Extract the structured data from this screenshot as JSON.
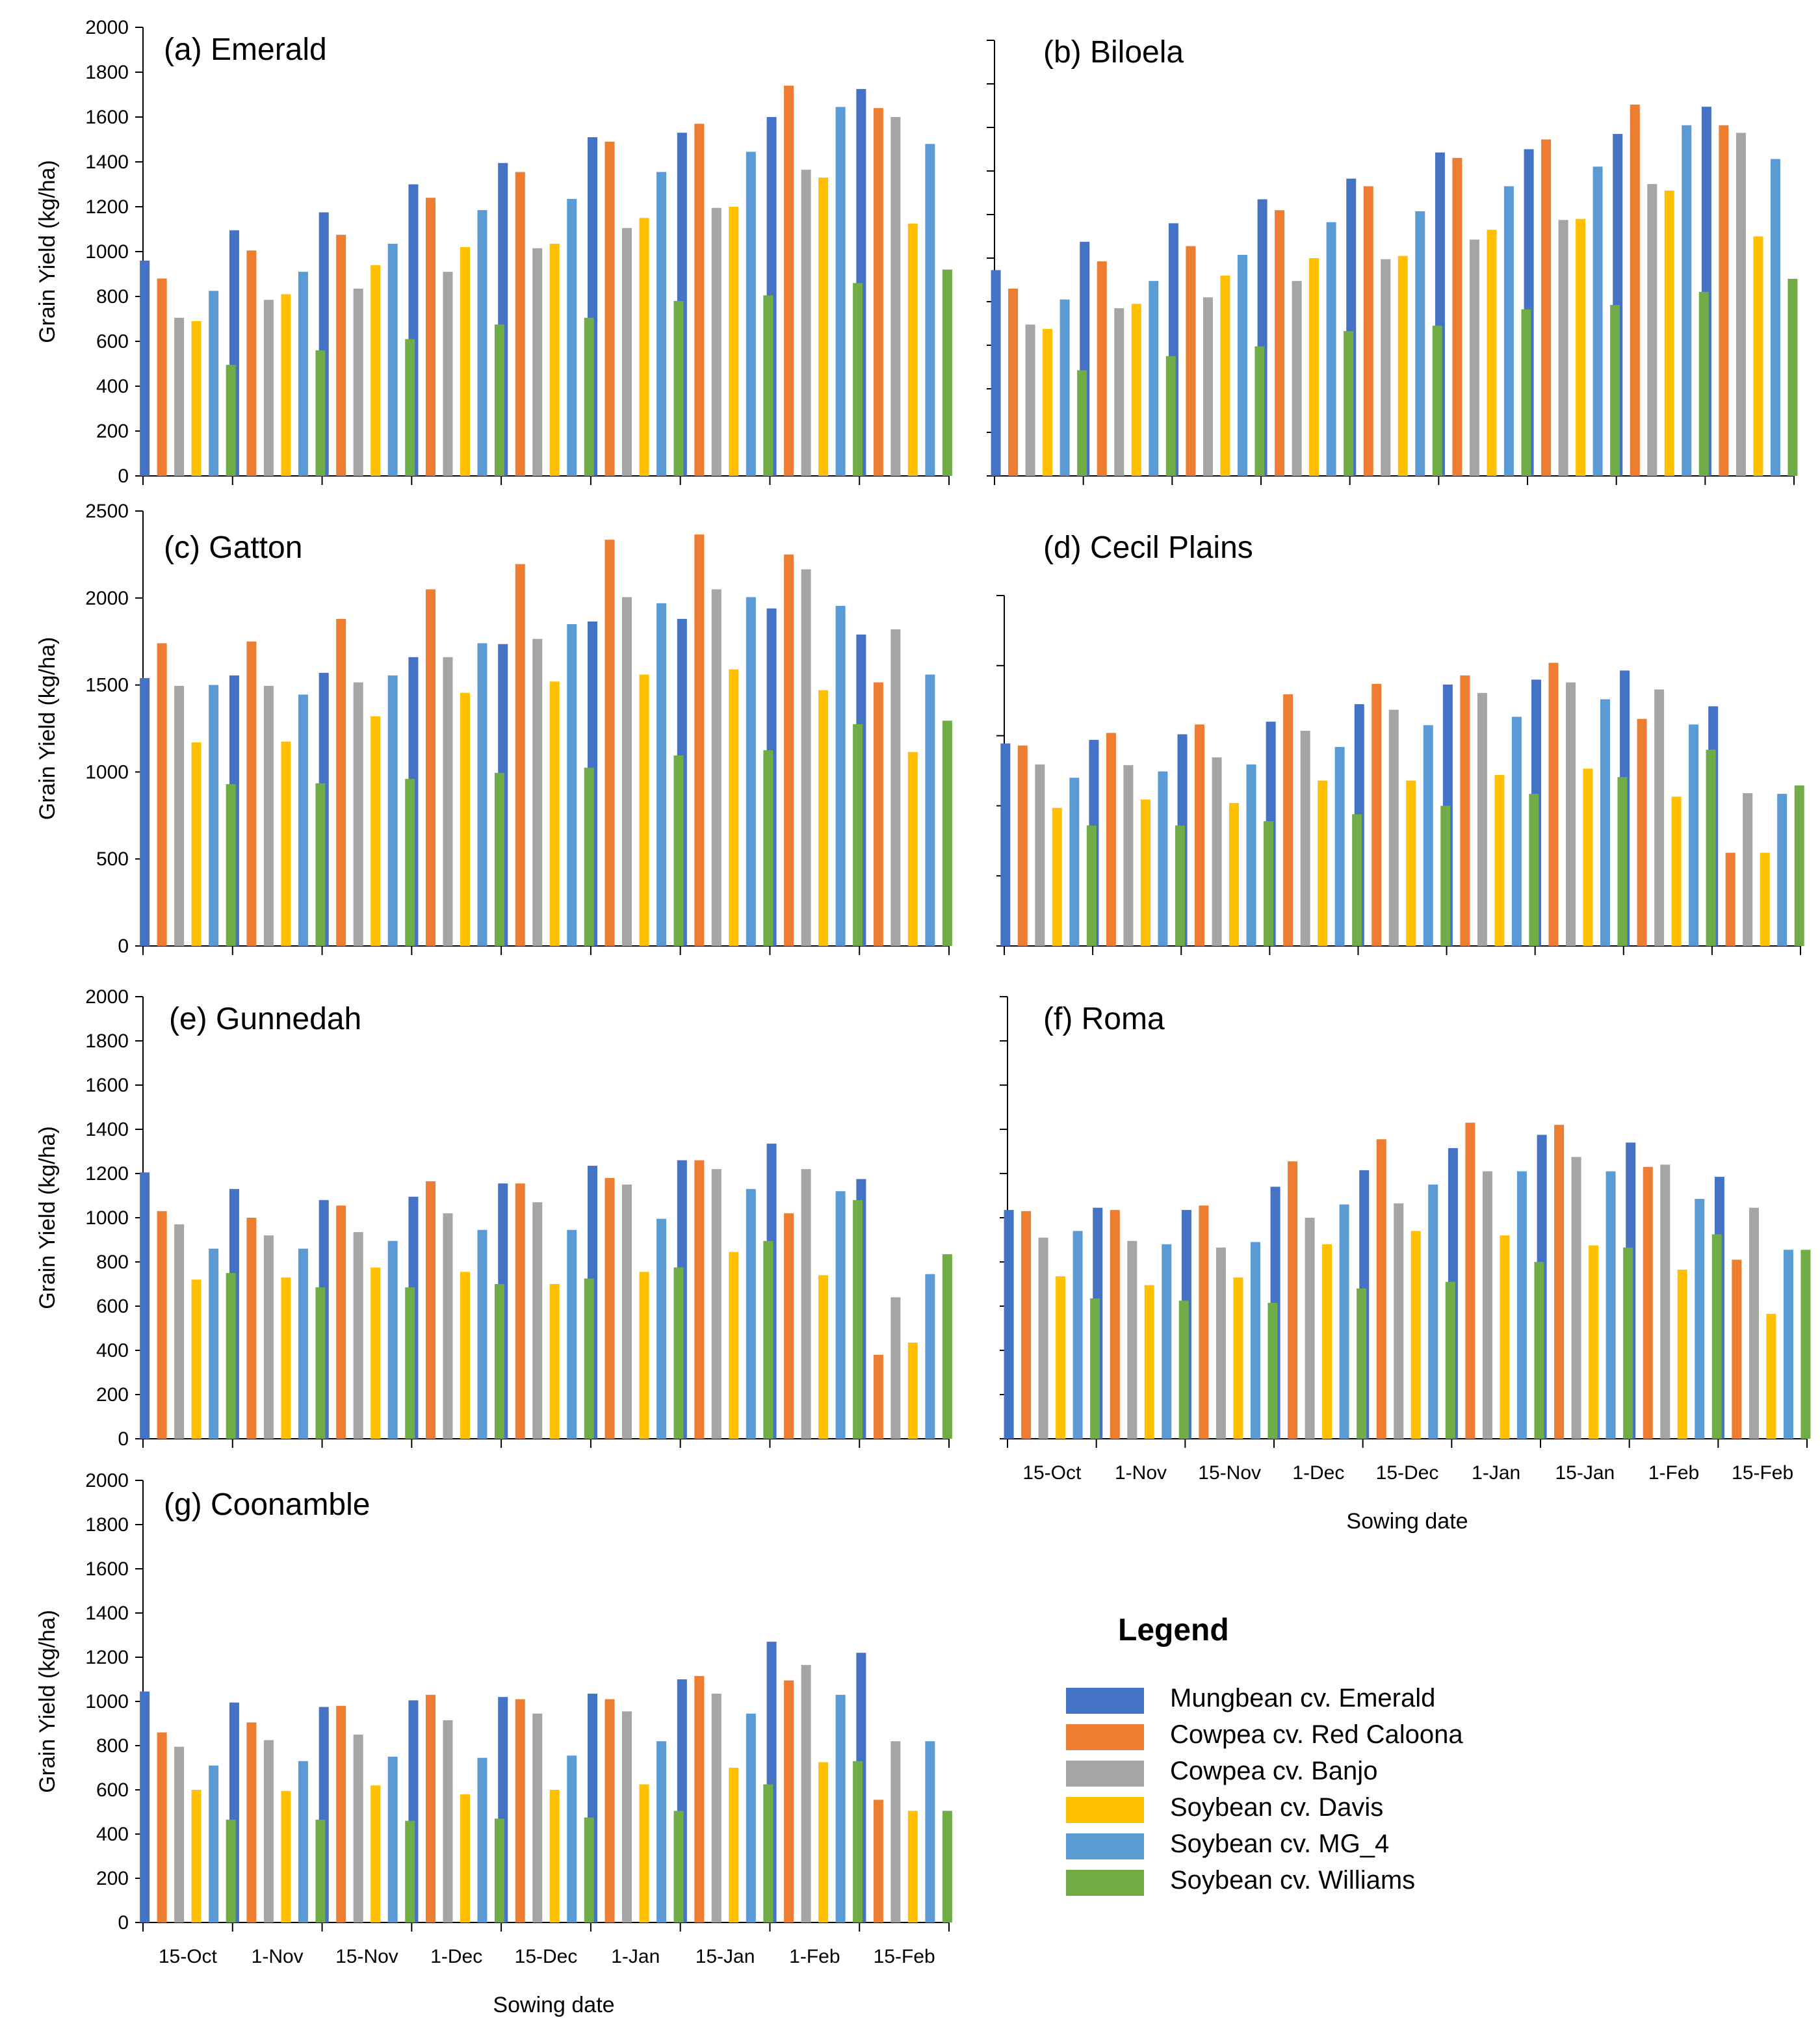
{
  "colors": {
    "series": [
      "#4472C4",
      "#ED7D31",
      "#A5A5A5",
      "#FFC000",
      "#5B9BD5",
      "#70AD47"
    ],
    "axis": "#000000",
    "text": "#000000"
  },
  "legend": {
    "title": "Legend",
    "items": [
      "Mungbean cv. Emerald",
      "Cowpea cv. Red Caloona",
      "Cowpea cv. Banjo",
      "Soybean cv. Davis",
      "Soybean cv. MG_4",
      "Soybean cv. Williams"
    ]
  },
  "chart_data": [
    {
      "type": "bar",
      "title": "(a) Emerald",
      "ylabel": "Grain Yield (kg/ha)",
      "xlabel": "",
      "ylim": [
        0,
        2000
      ],
      "yticks": [
        "0",
        "200",
        "400",
        "600",
        "800",
        "1000",
        "1200",
        "1400",
        "1600",
        "1800",
        "2000"
      ],
      "categories": [
        "15-Oct",
        "1-Nov",
        "15-Nov",
        "1-Dec",
        "15-Dec",
        "1-Jan",
        "15-Jan",
        "1-Feb",
        "15-Feb"
      ],
      "show_xtick_labels": false,
      "series": [
        {
          "name": "Mungbean cv. Emerald",
          "values": [
            960,
            1095,
            1175,
            1300,
            1395,
            1510,
            1530,
            1600,
            1725
          ]
        },
        {
          "name": "Cowpea cv. Red Caloona",
          "values": [
            880,
            1005,
            1075,
            1240,
            1355,
            1490,
            1570,
            1740,
            1640
          ]
        },
        {
          "name": "Cowpea cv. Banjo",
          "values": [
            705,
            785,
            835,
            910,
            1015,
            1105,
            1195,
            1365,
            1600
          ]
        },
        {
          "name": "Soybean cv. Davis",
          "values": [
            690,
            810,
            940,
            1020,
            1035,
            1150,
            1200,
            1330,
            1125
          ]
        },
        {
          "name": "Soybean cv. MG_4",
          "values": [
            825,
            910,
            1035,
            1185,
            1235,
            1355,
            1445,
            1645,
            1480
          ]
        },
        {
          "name": "Soybean cv. Williams",
          "values": [
            495,
            560,
            610,
            675,
            705,
            780,
            805,
            860,
            920
          ]
        }
      ]
    },
    {
      "type": "bar",
      "title": "(b) Biloela",
      "ylabel": "",
      "xlabel": "",
      "ylim": [
        0,
        2000
      ],
      "yticks": [],
      "categories": [
        "15-Oct",
        "1-Nov",
        "15-Nov",
        "1-Dec",
        "15-Dec",
        "1-Jan",
        "15-Jan",
        "1-Feb",
        "15-Feb"
      ],
      "show_xtick_labels": false,
      "series": [
        {
          "name": "Mungbean cv. Emerald",
          "values": [
            945,
            1075,
            1160,
            1270,
            1365,
            1485,
            1500,
            1570,
            1695
          ]
        },
        {
          "name": "Cowpea cv. Red Caloona",
          "values": [
            860,
            985,
            1055,
            1220,
            1330,
            1460,
            1545,
            1705,
            1610
          ]
        },
        {
          "name": "Cowpea cv. Banjo",
          "values": [
            695,
            770,
            820,
            895,
            995,
            1085,
            1175,
            1340,
            1575
          ]
        },
        {
          "name": "Soybean cv. Davis",
          "values": [
            675,
            790,
            920,
            1000,
            1010,
            1130,
            1180,
            1310,
            1100
          ]
        },
        {
          "name": "Soybean cv. MG_4",
          "values": [
            810,
            895,
            1015,
            1165,
            1215,
            1330,
            1420,
            1610,
            1455
          ]
        },
        {
          "name": "Soybean cv. Williams",
          "values": [
            485,
            550,
            595,
            665,
            690,
            765,
            785,
            845,
            905
          ]
        }
      ]
    },
    {
      "type": "bar",
      "title": "(c) Gatton",
      "ylabel": "Grain Yield (kg/ha)",
      "xlabel": "",
      "ylim": [
        0,
        2500
      ],
      "yticks": [
        "0",
        "500",
        "1000",
        "1500",
        "2000",
        "2500"
      ],
      "categories": [
        "15-Oct",
        "1-Nov",
        "15-Nov",
        "1-Dec",
        "15-Dec",
        "1-Jan",
        "15-Jan",
        "1-Feb",
        "15-Feb"
      ],
      "show_xtick_labels": false,
      "series": [
        {
          "name": "Mungbean cv. Emerald",
          "values": [
            1540,
            1555,
            1570,
            1660,
            1735,
            1865,
            1880,
            1940,
            1790
          ]
        },
        {
          "name": "Cowpea cv. Red Caloona",
          "values": [
            1740,
            1750,
            1880,
            2050,
            2195,
            2335,
            2365,
            2250,
            1515
          ]
        },
        {
          "name": "Cowpea cv. Banjo",
          "values": [
            1495,
            1495,
            1515,
            1660,
            1765,
            2005,
            2050,
            2165,
            1820
          ]
        },
        {
          "name": "Soybean cv. Davis",
          "values": [
            1170,
            1175,
            1320,
            1455,
            1520,
            1560,
            1590,
            1470,
            1115
          ]
        },
        {
          "name": "Soybean cv. MG_4",
          "values": [
            1500,
            1445,
            1555,
            1740,
            1850,
            1970,
            2005,
            1955,
            1560
          ]
        },
        {
          "name": "Soybean cv. Williams",
          "values": [
            930,
            935,
            960,
            995,
            1025,
            1095,
            1125,
            1275,
            1295
          ]
        }
      ]
    },
    {
      "type": "bar",
      "title": "(d) Cecil Plains",
      "ylabel": "",
      "xlabel": "",
      "ylim": [
        0,
        2500
      ],
      "yticks": [],
      "categories": [
        "15-Oct",
        "1-Nov",
        "15-Nov",
        "1-Dec",
        "15-Dec",
        "1-Jan",
        "15-Jan",
        "1-Feb",
        "15-Feb"
      ],
      "show_xtick_labels": false,
      "series": [
        {
          "name": "Mungbean cv. Emerald",
          "values": [
            1445,
            1470,
            1510,
            1600,
            1725,
            1865,
            1900,
            1965,
            1710
          ]
        },
        {
          "name": "Cowpea cv. Red Caloona",
          "values": [
            1430,
            1520,
            1580,
            1795,
            1870,
            1930,
            2020,
            1620,
            665
          ]
        },
        {
          "name": "Cowpea cv. Banjo",
          "values": [
            1295,
            1290,
            1345,
            1535,
            1685,
            1805,
            1880,
            1830,
            1090
          ]
        },
        {
          "name": "Soybean cv. Davis",
          "values": [
            985,
            1045,
            1020,
            1180,
            1180,
            1220,
            1265,
            1065,
            665
          ]
        },
        {
          "name": "Soybean cv. MG_4",
          "values": [
            1200,
            1245,
            1295,
            1420,
            1575,
            1635,
            1760,
            1580,
            1085
          ]
        },
        {
          "name": "Soybean cv. Williams",
          "values": [
            860,
            860,
            890,
            940,
            1000,
            1085,
            1205,
            1400,
            1145
          ]
        }
      ]
    },
    {
      "type": "bar",
      "title": "(e) Gunnedah",
      "ylabel": "Grain Yield (kg/ha)",
      "xlabel": "",
      "ylim": [
        0,
        2000
      ],
      "yticks": [
        "0",
        "200",
        "400",
        "600",
        "800",
        "1000",
        "1200",
        "1400",
        "1600",
        "1800",
        "2000"
      ],
      "categories": [
        "15-Oct",
        "1-Nov",
        "15-Nov",
        "1-Dec",
        "15-Dec",
        "1-Jan",
        "15-Jan",
        "1-Feb",
        "15-Feb"
      ],
      "show_xtick_labels": false,
      "series": [
        {
          "name": "Mungbean cv. Emerald",
          "values": [
            1205,
            1130,
            1080,
            1095,
            1155,
            1235,
            1260,
            1335,
            1175
          ]
        },
        {
          "name": "Cowpea cv. Red Caloona",
          "values": [
            1030,
            1000,
            1055,
            1165,
            1155,
            1180,
            1260,
            1020,
            380
          ]
        },
        {
          "name": "Cowpea cv. Banjo",
          "values": [
            970,
            920,
            935,
            1020,
            1070,
            1150,
            1220,
            1220,
            640
          ]
        },
        {
          "name": "Soybean cv. Davis",
          "values": [
            720,
            730,
            775,
            755,
            700,
            755,
            845,
            740,
            435
          ]
        },
        {
          "name": "Soybean cv. MG_4",
          "values": [
            860,
            860,
            895,
            945,
            945,
            995,
            1130,
            1120,
            745
          ]
        },
        {
          "name": "Soybean cv. Williams",
          "values": [
            750,
            685,
            685,
            700,
            725,
            775,
            895,
            1080,
            835
          ]
        }
      ]
    },
    {
      "type": "bar",
      "title": "(f) Roma",
      "ylabel": "",
      "xlabel": "Sowing date",
      "ylim": [
        0,
        2000
      ],
      "yticks": [],
      "categories": [
        "15-Oct",
        "1-Nov",
        "15-Nov",
        "1-Dec",
        "15-Dec",
        "1-Jan",
        "15-Jan",
        "1-Feb",
        "15-Feb"
      ],
      "show_xtick_labels": true,
      "series": [
        {
          "name": "Mungbean cv. Emerald",
          "values": [
            1035,
            1045,
            1035,
            1140,
            1215,
            1315,
            1375,
            1340,
            1185
          ]
        },
        {
          "name": "Cowpea cv. Red Caloona",
          "values": [
            1030,
            1035,
            1055,
            1255,
            1355,
            1430,
            1420,
            1230,
            810
          ]
        },
        {
          "name": "Cowpea cv. Banjo",
          "values": [
            910,
            895,
            865,
            1000,
            1065,
            1210,
            1275,
            1240,
            1045
          ]
        },
        {
          "name": "Soybean cv. Davis",
          "values": [
            735,
            695,
            730,
            880,
            940,
            920,
            875,
            765,
            565
          ]
        },
        {
          "name": "Soybean cv. MG_4",
          "values": [
            940,
            880,
            890,
            1060,
            1150,
            1210,
            1210,
            1085,
            855
          ]
        },
        {
          "name": "Soybean cv. Williams",
          "values": [
            635,
            625,
            615,
            680,
            710,
            800,
            865,
            925,
            855
          ]
        }
      ]
    },
    {
      "type": "bar",
      "title": "(g) Coonamble",
      "ylabel": "Grain Yield (kg/ha)",
      "xlabel": "Sowing date",
      "ylim": [
        0,
        2000
      ],
      "yticks": [
        "0",
        "200",
        "400",
        "600",
        "800",
        "1000",
        "1200",
        "1400",
        "1600",
        "1800",
        "2000"
      ],
      "categories": [
        "15-Oct",
        "1-Nov",
        "15-Nov",
        "1-Dec",
        "15-Dec",
        "1-Jan",
        "15-Jan",
        "1-Feb",
        "15-Feb"
      ],
      "show_xtick_labels": true,
      "series": [
        {
          "name": "Mungbean cv. Emerald",
          "values": [
            1045,
            995,
            975,
            1005,
            1020,
            1035,
            1100,
            1270,
            1220
          ]
        },
        {
          "name": "Cowpea cv. Red Caloona",
          "values": [
            860,
            905,
            980,
            1030,
            1010,
            1010,
            1115,
            1095,
            555
          ]
        },
        {
          "name": "Cowpea cv. Banjo",
          "values": [
            795,
            825,
            850,
            915,
            945,
            955,
            1035,
            1165,
            820
          ]
        },
        {
          "name": "Soybean cv. Davis",
          "values": [
            600,
            595,
            620,
            580,
            600,
            625,
            700,
            725,
            505
          ]
        },
        {
          "name": "Soybean cv. MG_4",
          "values": [
            710,
            730,
            750,
            745,
            755,
            820,
            945,
            1030,
            820
          ]
        },
        {
          "name": "Soybean cv. Williams",
          "values": [
            465,
            465,
            460,
            470,
            475,
            505,
            625,
            730,
            505
          ]
        }
      ]
    }
  ]
}
